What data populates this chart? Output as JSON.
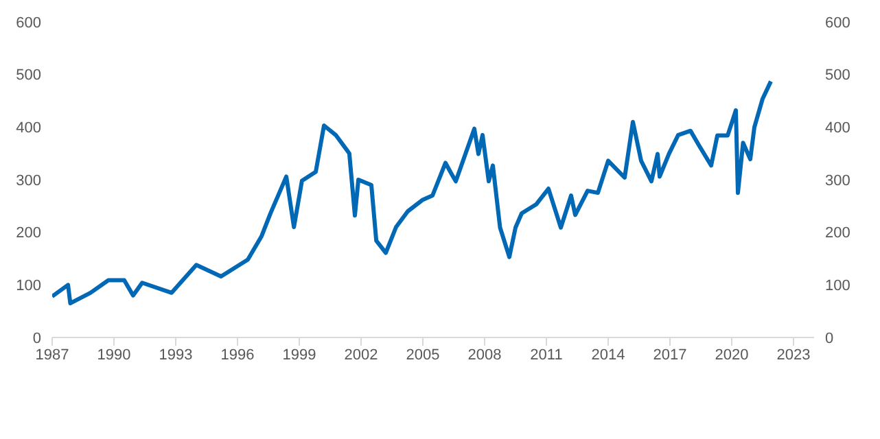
{
  "chart_data": {
    "type": "line",
    "color": "#0068b5",
    "x": [
      1987.0,
      1987.77,
      1987.88,
      1988.86,
      1989.73,
      1990.5,
      1990.93,
      1991.37,
      1992.8,
      1994.0,
      1995.2,
      1996.5,
      1997.16,
      1997.6,
      1998.37,
      1998.74,
      1999.13,
      1999.8,
      2000.2,
      2000.77,
      2001.43,
      2001.7,
      2001.87,
      2002.5,
      2002.74,
      2003.2,
      2003.7,
      2004.27,
      2005.0,
      2005.47,
      2006.1,
      2006.35,
      2006.6,
      2007.5,
      2007.7,
      2007.9,
      2008.2,
      2008.4,
      2008.75,
      2009.2,
      2009.5,
      2009.8,
      2010.5,
      2011.1,
      2011.7,
      2012.2,
      2012.4,
      2013.0,
      2013.5,
      2014.0,
      2014.8,
      2015.2,
      2015.6,
      2016.1,
      2016.4,
      2016.5,
      2016.95,
      2017.4,
      2018.0,
      2018.4,
      2019.0,
      2019.3,
      2019.8,
      2020.2,
      2020.3,
      2020.55,
      2020.9,
      2021.1,
      2021.5,
      2021.9
    ],
    "values": [
      78,
      100,
      65,
      85,
      109,
      109,
      80,
      104,
      85,
      138,
      116,
      148,
      192,
      236,
      306,
      210,
      298,
      315,
      403,
      385,
      350,
      232,
      300,
      290,
      184,
      161,
      210,
      240,
      262,
      270,
      332,
      314,
      297,
      397,
      349,
      385,
      297,
      327,
      209,
      153,
      209,
      236,
      253,
      283,
      209,
      270,
      233,
      279,
      275,
      336,
      304,
      410,
      336,
      297,
      349,
      306,
      349,
      385,
      393,
      366,
      327,
      384,
      384,
      432,
      275,
      370,
      339,
      400,
      454,
      487
    ],
    "xlim": [
      1987,
      2024
    ],
    "xticks": [
      1987,
      1990,
      1993,
      1996,
      1999,
      2002,
      2005,
      2008,
      2011,
      2014,
      2017,
      2020,
      2023
    ],
    "ylim": [
      0,
      600
    ],
    "yticks": [
      0,
      100,
      200,
      300,
      400,
      500,
      600
    ],
    "y2lim": [
      0,
      600
    ],
    "y2ticks": [
      0,
      100,
      200,
      300,
      400,
      500,
      600
    ]
  }
}
